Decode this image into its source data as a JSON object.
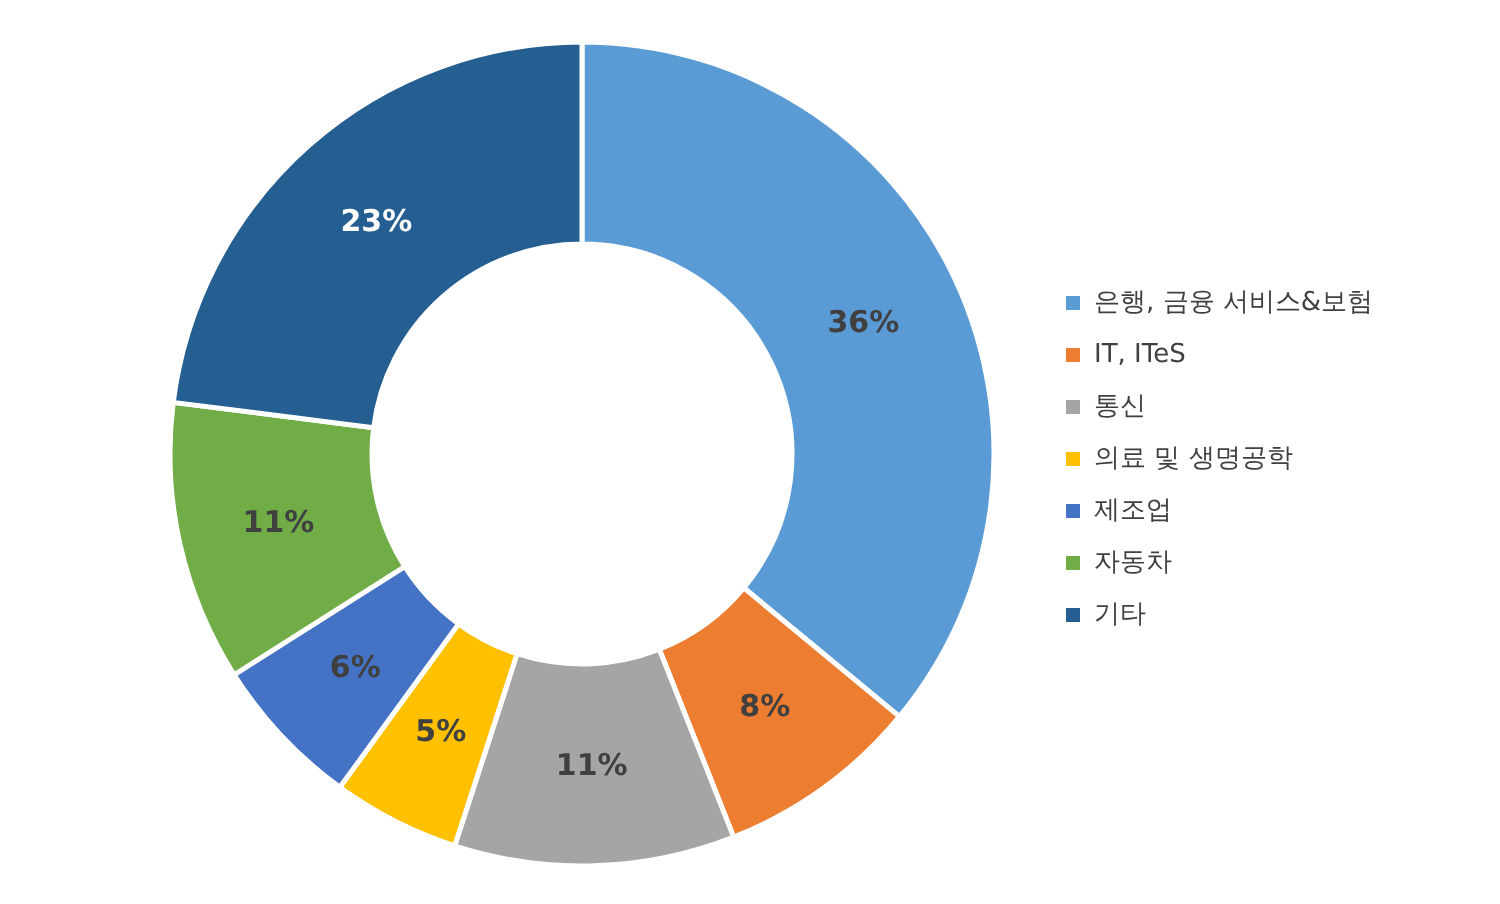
{
  "chart_data": {
    "type": "donut",
    "categories": [
      "은행, 금융 서비스&보험",
      "IT, ITeS",
      "통신",
      "의료 및 생명공학",
      "제조업",
      "자동차",
      "기타"
    ],
    "values": [
      36,
      8,
      11,
      5,
      6,
      11,
      23
    ],
    "colors": [
      "#5b9bd5",
      "#ed7d31",
      "#a5a5a5",
      "#ffc000",
      "#4472c4",
      "#70ad47",
      "#255e91"
    ],
    "value_labels": [
      "36%",
      "8%",
      "11%",
      "5%",
      "6%",
      "11%",
      "23%"
    ],
    "legend": "right"
  }
}
